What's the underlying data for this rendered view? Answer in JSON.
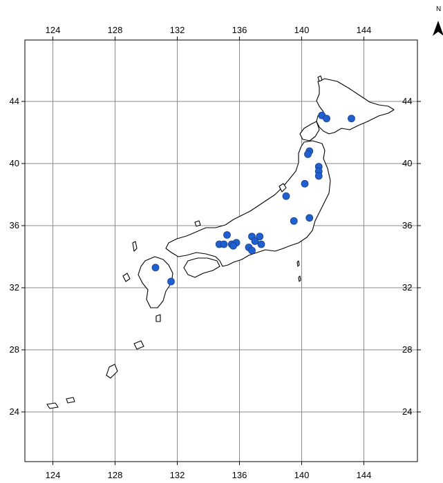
{
  "map": {
    "lon_ticks": [
      "124",
      "128",
      "132",
      "136",
      "140",
      "144"
    ],
    "lat_ticks": [
      "44",
      "40",
      "36",
      "32",
      "28",
      "24"
    ],
    "lon_range": [
      122,
      148
    ],
    "lat_range": [
      20.5,
      47
    ],
    "grid": true,
    "north_arrow": {
      "label": "N",
      "icon": "north-arrow-icon"
    },
    "marker_color": "#1f5fcf",
    "sites": [
      {
        "lon": 141.3,
        "lat": 43.1
      },
      {
        "lon": 141.6,
        "lat": 42.9
      },
      {
        "lon": 143.2,
        "lat": 42.9
      },
      {
        "lon": 140.5,
        "lat": 40.8
      },
      {
        "lon": 140.4,
        "lat": 40.6
      },
      {
        "lon": 141.1,
        "lat": 39.8
      },
      {
        "lon": 141.1,
        "lat": 39.5
      },
      {
        "lon": 141.1,
        "lat": 39.2
      },
      {
        "lon": 140.2,
        "lat": 38.7
      },
      {
        "lon": 139.0,
        "lat": 37.9
      },
      {
        "lon": 140.5,
        "lat": 36.5
      },
      {
        "lon": 139.5,
        "lat": 36.3
      },
      {
        "lon": 135.2,
        "lat": 35.4
      },
      {
        "lon": 136.8,
        "lat": 35.3
      },
      {
        "lon": 137.3,
        "lat": 35.3
      },
      {
        "lon": 137.0,
        "lat": 35.0
      },
      {
        "lon": 137.4,
        "lat": 34.8
      },
      {
        "lon": 134.7,
        "lat": 34.8
      },
      {
        "lon": 135.0,
        "lat": 34.8
      },
      {
        "lon": 135.5,
        "lat": 34.8
      },
      {
        "lon": 135.8,
        "lat": 34.9
      },
      {
        "lon": 135.6,
        "lat": 34.7
      },
      {
        "lon": 136.6,
        "lat": 34.6
      },
      {
        "lon": 136.8,
        "lat": 34.4
      },
      {
        "lon": 130.6,
        "lat": 33.3
      },
      {
        "lon": 131.6,
        "lat": 32.4
      }
    ]
  }
}
